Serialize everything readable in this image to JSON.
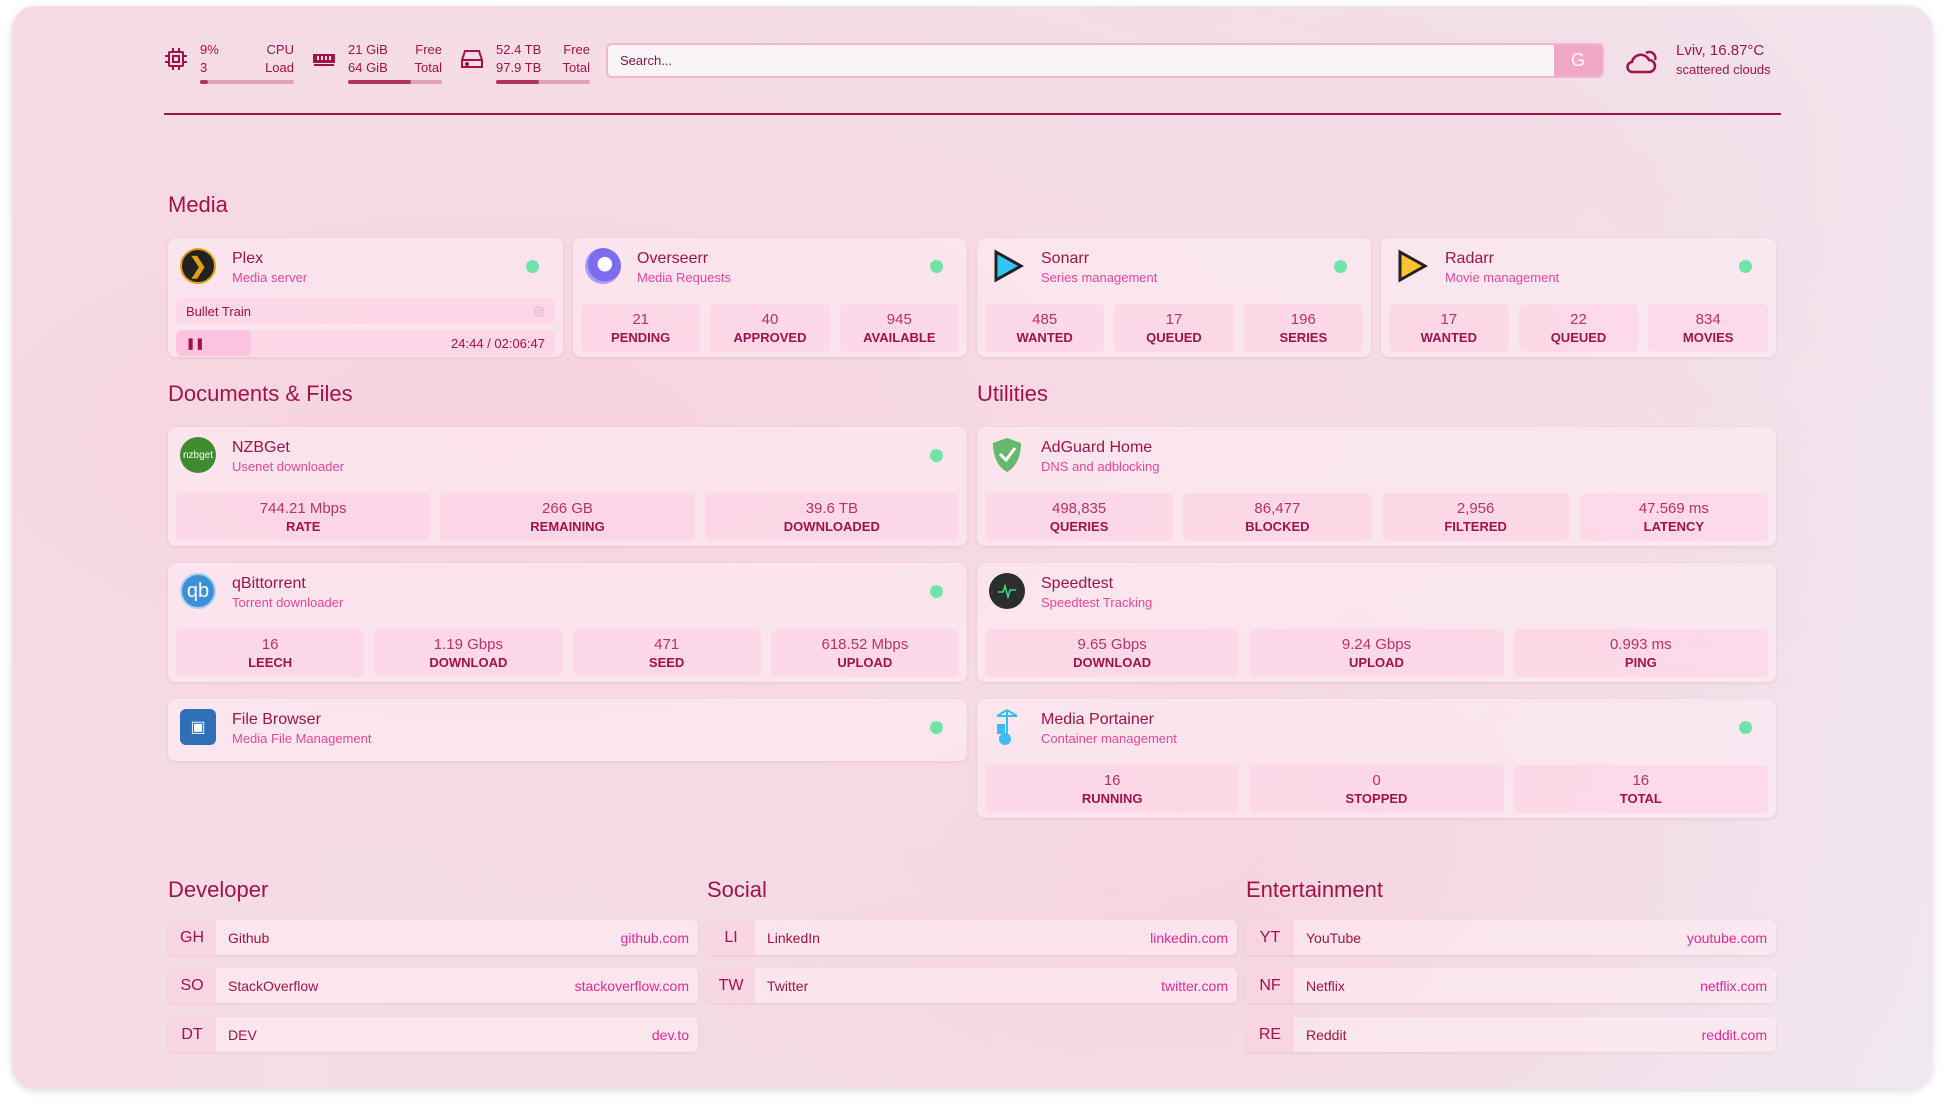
{
  "resources": {
    "cpu": {
      "value": "9%",
      "value2": "3",
      "label": "CPU",
      "label2": "Load",
      "percent": 9
    },
    "memory": {
      "value": "21 GiB",
      "value2": "64 GiB",
      "label": "Free",
      "label2": "Total",
      "percent": 67
    },
    "disk": {
      "value": "52.4 TB",
      "value2": "97.9 TB",
      "label": "Free",
      "label2": "Total",
      "percent": 46
    }
  },
  "search": {
    "placeholder": "Search...",
    "button": "G"
  },
  "weather": {
    "location": "Lviv, 16.87°C",
    "condition": "scattered clouds",
    "icon": "cloud-sun-icon"
  },
  "colors": {
    "text": "#a0124a",
    "accent": "#e2479a",
    "status_ok": "#6fe3a8"
  },
  "groups": {
    "media": "Media",
    "docs": "Documents & Files",
    "utilities": "Utilities",
    "developer": "Developer",
    "social": "Social",
    "entertainment": "Entertainment"
  },
  "media": [
    {
      "name": "Plex",
      "sub": "Media server",
      "now_playing": "Bullet Train",
      "time": "24:44 / 02:06:47"
    },
    {
      "name": "Overseerr",
      "sub": "Media Requests",
      "stats": [
        {
          "v": "21",
          "l": "PENDING"
        },
        {
          "v": "40",
          "l": "APPROVED"
        },
        {
          "v": "945",
          "l": "AVAILABLE"
        }
      ]
    },
    {
      "name": "Sonarr",
      "sub": "Series management",
      "stats": [
        {
          "v": "485",
          "l": "WANTED"
        },
        {
          "v": "17",
          "l": "QUEUED"
        },
        {
          "v": "196",
          "l": "SERIES"
        }
      ]
    },
    {
      "name": "Radarr",
      "sub": "Movie management",
      "stats": [
        {
          "v": "17",
          "l": "WANTED"
        },
        {
          "v": "22",
          "l": "QUEUED"
        },
        {
          "v": "834",
          "l": "MOVIES"
        }
      ]
    }
  ],
  "docs": [
    {
      "name": "NZBGet",
      "sub": "Usenet downloader",
      "logo": "nzbget",
      "stats": [
        {
          "v": "744.21 Mbps",
          "l": "RATE"
        },
        {
          "v": "266 GB",
          "l": "REMAINING"
        },
        {
          "v": "39.6 TB",
          "l": "DOWNLOADED"
        }
      ]
    },
    {
      "name": "qBittorrent",
      "sub": "Torrent downloader",
      "logo": "qb",
      "stats": [
        {
          "v": "16",
          "l": "LEECH"
        },
        {
          "v": "1.19 Gbps",
          "l": "DOWNLOAD"
        },
        {
          "v": "471",
          "l": "SEED"
        },
        {
          "v": "618.52 Mbps",
          "l": "UPLOAD"
        }
      ]
    },
    {
      "name": "File Browser",
      "sub": "Media File Management"
    }
  ],
  "utilities": [
    {
      "name": "AdGuard Home",
      "sub": "DNS and adblocking",
      "stats": [
        {
          "v": "498,835",
          "l": "QUERIES"
        },
        {
          "v": "86,477",
          "l": "BLOCKED"
        },
        {
          "v": "2,956",
          "l": "FILTERED"
        },
        {
          "v": "47.569 ms",
          "l": "LATENCY"
        }
      ]
    },
    {
      "name": "Speedtest",
      "sub": "Speedtest Tracking",
      "stats": [
        {
          "v": "9.65 Gbps",
          "l": "DOWNLOAD"
        },
        {
          "v": "9.24 Gbps",
          "l": "UPLOAD"
        },
        {
          "v": "0.993 ms",
          "l": "PING"
        }
      ]
    },
    {
      "name": "Media Portainer",
      "sub": "Container management",
      "stats": [
        {
          "v": "16",
          "l": "RUNNING"
        },
        {
          "v": "0",
          "l": "STOPPED"
        },
        {
          "v": "16",
          "l": "TOTAL"
        }
      ]
    }
  ],
  "bookmarks": {
    "developer": [
      {
        "abbr": "GH",
        "name": "Github",
        "url": "github.com"
      },
      {
        "abbr": "SO",
        "name": "StackOverflow",
        "url": "stackoverflow.com"
      },
      {
        "abbr": "DT",
        "name": "DEV",
        "url": "dev.to"
      }
    ],
    "social": [
      {
        "abbr": "LI",
        "name": "LinkedIn",
        "url": "linkedin.com"
      },
      {
        "abbr": "TW",
        "name": "Twitter",
        "url": "twitter.com"
      }
    ],
    "entertainment": [
      {
        "abbr": "YT",
        "name": "YouTube",
        "url": "youtube.com"
      },
      {
        "abbr": "NF",
        "name": "Netflix",
        "url": "netflix.com"
      },
      {
        "abbr": "RE",
        "name": "Reddit",
        "url": "reddit.com"
      }
    ]
  }
}
